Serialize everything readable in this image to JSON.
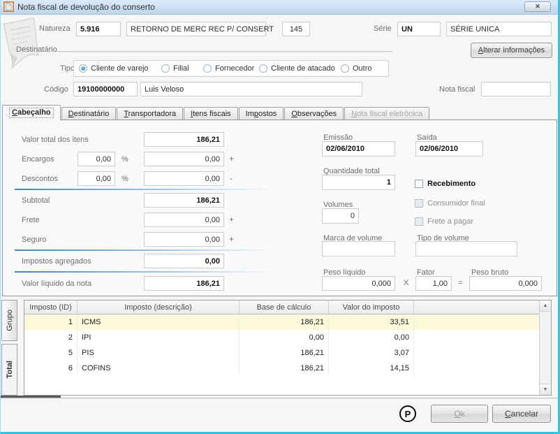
{
  "window": {
    "title": "Nota fiscal de devolução do conserto",
    "icons": {
      "app": "document",
      "close": "✕",
      "paper": "curled-page",
      "scroll_up": "▲",
      "scroll_down": "▼"
    }
  },
  "colors": {
    "window_border": "#3cc0dc",
    "titlebar_top": "#dcebf8",
    "titlebar_bottom": "#bed4ea",
    "row_highlight": "#fcf9da",
    "divider_blue": "#3f84cc"
  },
  "header": {
    "natureza_label": "Natureza",
    "natureza_code": "5.916",
    "natureza_desc": "RETORNO DE MERC REC P/ CONSERT",
    "natureza_numero": "145",
    "serie_label": "Série",
    "serie_code": "UN",
    "serie_desc": "SÉRIE UNICA"
  },
  "destinatario": {
    "group_label": "Destinatário",
    "alterar_button": {
      "label": "Alterar informações",
      "accesskey": "A"
    },
    "tipo_label": "Tipo",
    "tipo_selected": "Cliente de varejo",
    "tipo_options": [
      "Cliente de varejo",
      "Filial",
      "Fornecedor",
      "Cliente de atacado",
      "Outro"
    ],
    "codigo_label": "Código",
    "codigo_value": "19100000000",
    "nome_value": "Luis Veloso",
    "nota_fiscal_label": "Nota fiscal",
    "nota_fiscal_value": ""
  },
  "tabs": [
    {
      "label": "Cabeçalho",
      "accesskey": "C",
      "state": "active"
    },
    {
      "label": "Destinatário",
      "accesskey": "D",
      "state": "normal"
    },
    {
      "label": "Transportadora",
      "accesskey": "T",
      "state": "normal"
    },
    {
      "label": "Itens fiscais",
      "accesskey": "I",
      "state": "normal"
    },
    {
      "label": "Impostos",
      "accesskey": "p",
      "state": "normal"
    },
    {
      "label": "Observações",
      "accesskey": "O",
      "state": "normal"
    },
    {
      "label": "Nota fiscal eletrônica",
      "accesskey": "N",
      "state": "disabled"
    }
  ],
  "totals": {
    "valor_total_label": "Valor total dos itens",
    "valor_total": "186,21",
    "encargos_label": "Encargos",
    "encargos_pct": "0,00",
    "encargos_value": "0,00",
    "encargos_suffix": "+",
    "descontos_label": "Descontos",
    "descontos_pct": "0,00",
    "descontos_value": "0,00",
    "descontos_suffix": "-",
    "percent": "%",
    "subtotal_label": "Subtotal",
    "subtotal": "186,21",
    "frete_label": "Frete",
    "frete_value": "0,00",
    "frete_suffix": "+",
    "seguro_label": "Seguro",
    "seguro_value": "0,00",
    "seguro_suffix": "+",
    "impostos_agregados_label": "Impostos agregados",
    "impostos_agregados": "0,00",
    "valor_liquido_label": "Valor líquido da nota",
    "valor_liquido": "186,21"
  },
  "details": {
    "emissao_label": "Emissão",
    "emissao": "02/06/2010",
    "saida_label": "Saída",
    "saida": "02/06/2010",
    "quantidade_label": "Quantidade total",
    "quantidade": "1",
    "recebimento_label": "Recebimento",
    "recebimento_checked": false,
    "volumes_label": "Volumes",
    "volumes": "0",
    "consumidor_final_label": "Consumidor final",
    "consumidor_final_checked": false,
    "frete_a_pagar_label": "Frete a pagar",
    "frete_a_pagar_checked": false,
    "marca_label": "Marca de volume",
    "marca_value": "",
    "tipo_volume_label": "Tipo de volume",
    "tipo_volume_value": "",
    "peso_liquido_label": "Peso líquido",
    "peso_liquido": "0,000",
    "times": "X",
    "fator_label": "Fator",
    "fator": "1,00",
    "equals": "=",
    "peso_bruto_label": "Peso bruto",
    "peso_bruto": "0,000"
  },
  "side_tabs": {
    "grupo": "Grupo",
    "total": "Total",
    "selected": "Total"
  },
  "tax_table": {
    "headers": [
      "Imposto (ID)",
      "Imposto (descrição)",
      "Base de cálculo",
      "Valor do imposto"
    ],
    "rows": [
      {
        "id": "1",
        "name": "ICMS",
        "base": "186,21",
        "value": "33,51",
        "highlighted": true
      },
      {
        "id": "2",
        "name": "IPI",
        "base": "0,00",
        "value": "0,00",
        "highlighted": false
      },
      {
        "id": "5",
        "name": "PIS",
        "base": "186,21",
        "value": "3,07",
        "highlighted": false
      },
      {
        "id": "6",
        "name": "COFINS",
        "base": "186,21",
        "value": "14,15",
        "highlighted": false
      }
    ]
  },
  "footer": {
    "p_badge": "P",
    "ok_button": {
      "label": "Ok",
      "accesskey": "O",
      "enabled": false
    },
    "cancel_button": {
      "label": "Cancelar",
      "accesskey": "C",
      "enabled": true
    }
  }
}
